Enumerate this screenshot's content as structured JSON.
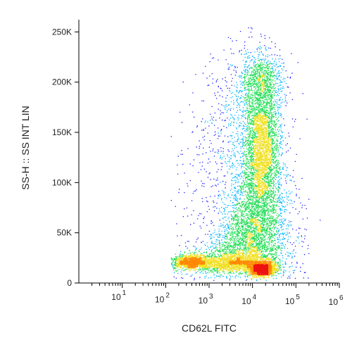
{
  "chart_data": {
    "type": "scatter",
    "style": "flow cytometry pseudocolor density dot plot",
    "xlabel": "CD62L FITC",
    "ylabel": "SS-H :: SS INT LIN",
    "x_scale": "log",
    "xlim": [
      1,
      1000000
    ],
    "y_scale": "linear",
    "ylim": [
      0,
      262144
    ],
    "x_tick_labels": [
      {
        "value": 10,
        "base": "10",
        "exp": "1"
      },
      {
        "value": 100,
        "base": "10",
        "exp": "2"
      },
      {
        "value": 1000,
        "base": "10",
        "exp": "3"
      },
      {
        "value": 10000,
        "base": "10",
        "exp": "4"
      },
      {
        "value": 100000,
        "base": "10",
        "exp": "5"
      },
      {
        "value": 1000000,
        "base": "10",
        "exp": "6"
      }
    ],
    "y_ticks": [
      {
        "value": 0,
        "label": "0"
      },
      {
        "value": 50000,
        "label": "50K"
      },
      {
        "value": 100000,
        "label": "100K"
      },
      {
        "value": 150000,
        "label": "150K"
      },
      {
        "value": 200000,
        "label": "200K"
      },
      {
        "value": 250000,
        "label": "250K"
      }
    ],
    "populations": [
      {
        "center_x": 16000,
        "center_y": 14000,
        "density": "highest"
      },
      {
        "center_x": 400,
        "center_y": 21000,
        "density": "high"
      },
      {
        "center_x": 16000,
        "center_y": 135000,
        "density": "high"
      },
      {
        "center_x": 4000,
        "center_y": 20000,
        "density": "medium"
      },
      {
        "center_x": 10000,
        "center_y": 50000,
        "density": "medium"
      }
    ],
    "density_colors": [
      "#1a1aff",
      "#00b4ff",
      "#22dd55",
      "#f0e020",
      "#ff8800",
      "#ee1111"
    ],
    "grid": false,
    "legend": "none"
  }
}
